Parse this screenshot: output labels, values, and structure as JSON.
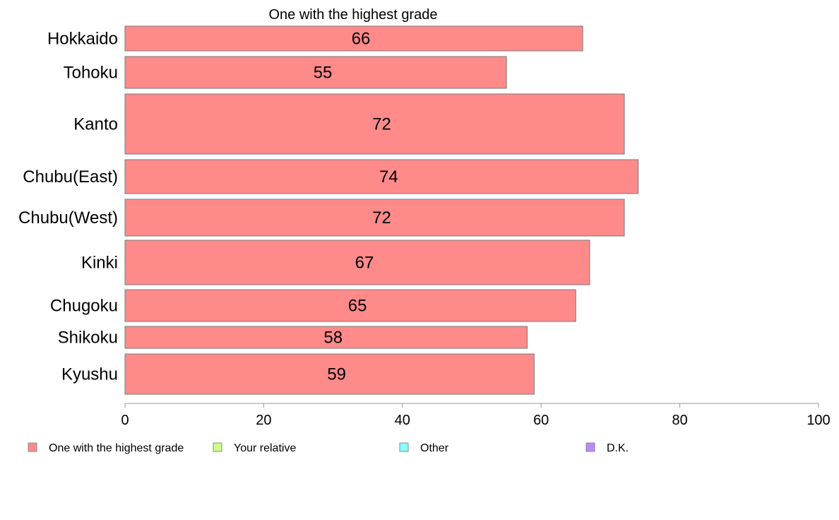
{
  "chart_data": {
    "type": "bar",
    "orientation": "horizontal",
    "title": "One with the highest grade",
    "categories": [
      "Hokkaido",
      "Tohoku",
      "Kanto",
      "Chubu(East)",
      "Chubu(West)",
      "Kinki",
      "Chugoku",
      "Shikoku",
      "Kyushu"
    ],
    "series": [
      {
        "name": "One with the highest grade",
        "values": [
          66,
          55,
          72,
          74,
          72,
          67,
          65,
          58,
          59
        ],
        "color": "#ff8a8a"
      }
    ],
    "data_labels": [
      "66",
      "55",
      "72",
      "74",
      "72",
      "67",
      "65",
      "58",
      "59"
    ],
    "xlim": [
      0,
      100
    ],
    "x_ticks": [
      0,
      20,
      40,
      60,
      80,
      100
    ],
    "x_tick_labels": [
      "0",
      "20",
      "40",
      "60",
      "80",
      "100"
    ],
    "grid": false,
    "legend": {
      "placement": "bottom",
      "entries": [
        {
          "label": "One with the highest grade",
          "color": "#ff8a8a"
        },
        {
          "label": "Your relative",
          "color": "#ccff88"
        },
        {
          "label": "Other",
          "color": "#88ffff"
        },
        {
          "label": "D.K.",
          "color": "#bb88ff"
        }
      ]
    }
  }
}
